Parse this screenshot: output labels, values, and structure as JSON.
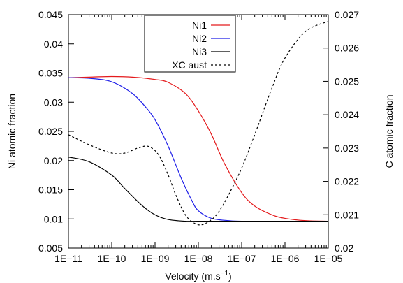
{
  "chart_data": {
    "type": "line",
    "title": "",
    "xlabel": "Velocity (m.s",
    "xlabel_sup": "−1",
    "xlabel_end": ")",
    "ylabel": "Ni atomic fraction",
    "y2label": "C atomic fraction",
    "xscale": "log",
    "xlim": [
      1e-11,
      1e-05
    ],
    "ylim": [
      0.005,
      0.045
    ],
    "y2lim": [
      0.02,
      0.027
    ],
    "x_ticks": [
      {
        "value": 1e-11,
        "label": "1E−11"
      },
      {
        "value": 1e-10,
        "label": "1E−10"
      },
      {
        "value": 1e-09,
        "label": "1E−09"
      },
      {
        "value": 1e-08,
        "label": "1E−08"
      },
      {
        "value": 1e-07,
        "label": "1E−07"
      },
      {
        "value": 1e-06,
        "label": "1E−06"
      },
      {
        "value": 1e-05,
        "label": "1E−05"
      }
    ],
    "y_ticks": [
      {
        "value": 0.005,
        "label": "0.005"
      },
      {
        "value": 0.01,
        "label": "0.01"
      },
      {
        "value": 0.015,
        "label": "0.015"
      },
      {
        "value": 0.02,
        "label": "0.02"
      },
      {
        "value": 0.025,
        "label": "0.025"
      },
      {
        "value": 0.03,
        "label": "0.03"
      },
      {
        "value": 0.035,
        "label": "0.035"
      },
      {
        "value": 0.04,
        "label": "0.04"
      },
      {
        "value": 0.045,
        "label": "0.045"
      }
    ],
    "y2_ticks": [
      {
        "value": 0.02,
        "label": "0.02"
      },
      {
        "value": 0.021,
        "label": "0.021"
      },
      {
        "value": 0.022,
        "label": "0.022"
      },
      {
        "value": 0.023,
        "label": "0.023"
      },
      {
        "value": 0.024,
        "label": "0.024"
      },
      {
        "value": 0.025,
        "label": "0.025"
      },
      {
        "value": 0.026,
        "label": "0.026"
      },
      {
        "value": 0.027,
        "label": "0.027"
      }
    ],
    "grid": false,
    "legend_position": "top-center",
    "series": [
      {
        "name": "Ni1",
        "color": "#e41a1c",
        "dash": "solid",
        "axis": "left",
        "x": [
          1e-11,
          3e-11,
          1e-10,
          3e-10,
          1e-09,
          2e-09,
          5e-09,
          1e-08,
          2e-08,
          4e-08,
          1e-07,
          2e-07,
          5e-07,
          1e-06,
          3e-06,
          1e-05
        ],
        "y": [
          0.0342,
          0.0343,
          0.0344,
          0.0343,
          0.0339,
          0.0334,
          0.0315,
          0.0285,
          0.0245,
          0.0195,
          0.0145,
          0.0122,
          0.0107,
          0.0101,
          0.0097,
          0.0096
        ]
      },
      {
        "name": "Ni2",
        "color": "#1f1fe8",
        "dash": "solid",
        "axis": "left",
        "x": [
          1e-11,
          3e-11,
          1e-10,
          3e-10,
          6e-10,
          1e-09,
          2e-09,
          4e-09,
          7e-09,
          1e-08,
          2e-08,
          5e-08,
          1e-07,
          1e-06,
          1e-05
        ],
        "y": [
          0.0342,
          0.0341,
          0.0335,
          0.0315,
          0.0292,
          0.027,
          0.0225,
          0.017,
          0.0132,
          0.0114,
          0.0101,
          0.0097,
          0.0096,
          0.0096,
          0.0096
        ]
      },
      {
        "name": "Ni3",
        "color": "#000000",
        "dash": "solid",
        "axis": "left",
        "x": [
          1e-11,
          3e-11,
          1e-10,
          2e-10,
          5e-10,
          1e-09,
          2e-09,
          5e-09,
          1e-08,
          1e-07,
          1e-06,
          1e-05
        ],
        "y": [
          0.0206,
          0.0198,
          0.0175,
          0.0152,
          0.0123,
          0.0107,
          0.0099,
          0.0096,
          0.0096,
          0.0096,
          0.0096,
          0.0096
        ]
      },
      {
        "name": "XC aust",
        "color": "#000000",
        "dash": "dashed",
        "axis": "right",
        "x": [
          1e-11,
          3e-11,
          1e-10,
          2e-10,
          4e-10,
          7e-10,
          1.2e-09,
          2e-09,
          3e-09,
          5e-09,
          8e-09,
          1.2e-08,
          2e-08,
          3e-08,
          5e-08,
          1e-07,
          2e-07,
          5e-07,
          1e-06,
          3e-06,
          1e-05
        ],
        "y": [
          0.0234,
          0.0231,
          0.02285,
          0.02285,
          0.023,
          0.02305,
          0.0228,
          0.0222,
          0.0216,
          0.021,
          0.02075,
          0.0207,
          0.02085,
          0.0211,
          0.0216,
          0.0224,
          0.0234,
          0.0248,
          0.0257,
          0.0265,
          0.0268
        ]
      }
    ]
  }
}
